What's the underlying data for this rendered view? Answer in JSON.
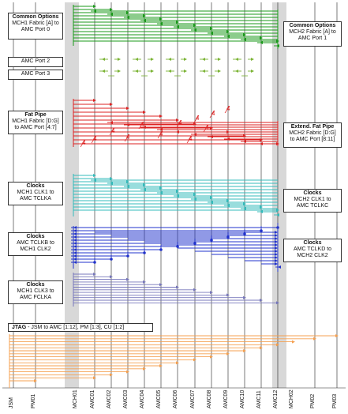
{
  "colors": {
    "common": "#1a9a1a",
    "amc_port": "#7ab333",
    "fat_pipe": "#dd2222",
    "clocks1": "#33bbbb",
    "clocks_b": "#2233cc",
    "clocks3": "#7777bb",
    "jtag": "#f5a050",
    "mch_band": "#d8d8d8"
  },
  "slots": [
    "JSM",
    "PM01",
    "MCH01",
    "AMC01",
    "AMC02",
    "AMC03",
    "AMC04",
    "AMC05",
    "AMC06",
    "AMC07",
    "AMC08",
    "AMC09",
    "AMC10",
    "AMC11",
    "AMC12",
    "MCH02",
    "PM02",
    "PM03"
  ],
  "labels_left": {
    "common": {
      "title": "Common Options",
      "line1": "MCH1 Fabric [A] to",
      "line2": "AMC Port 0"
    },
    "amc_port2": {
      "text": "AMC Port 2"
    },
    "amc_port3": {
      "text": "AMC Port 3"
    },
    "fat_pipe": {
      "title": "Fat Pipe",
      "line1": "MCH1 Fabric [D:G]",
      "line2": "to AMC Port [4:7]"
    },
    "clocks1": {
      "title": "Clocks",
      "line1": "MCH1 CLK1 to",
      "line2": "AMC TCLKA"
    },
    "clocks2": {
      "title": "Clocks",
      "line1": "AMC TCLKB to",
      "line2": "MCH1 CLK2"
    },
    "clocks3": {
      "title": "Clocks",
      "line1": "MCH1 CLK3 to",
      "line2": "AMC FCLKA"
    },
    "jtag": {
      "title": "JTAG",
      "rest": " - JSM to AMC [1:12], PM [1:3], CU [1:2]"
    }
  },
  "labels_right": {
    "common": {
      "title": "Common Options",
      "line1": "MCH2 Fabric [A] to",
      "line2": "AMC Port 1"
    },
    "ext_fat_pipe": {
      "title": "Extend. Fat Pipe",
      "line1": "MCH2 Fabric [D:G]",
      "line2": "to AMC Port [8:11]"
    },
    "clocks1": {
      "title": "Clocks",
      "line1": "MCH2 CLK1 to",
      "line2": "AMC TCLKC"
    },
    "clocks2": {
      "title": "Clocks",
      "line1": "AMC TCLKD to",
      "line2": "MCH2 CLK2"
    }
  },
  "bus_width_marks": [
    "4",
    "4",
    "4",
    "4",
    "4",
    "4",
    "4",
    "4",
    "4",
    "4",
    "4",
    "4"
  ]
}
